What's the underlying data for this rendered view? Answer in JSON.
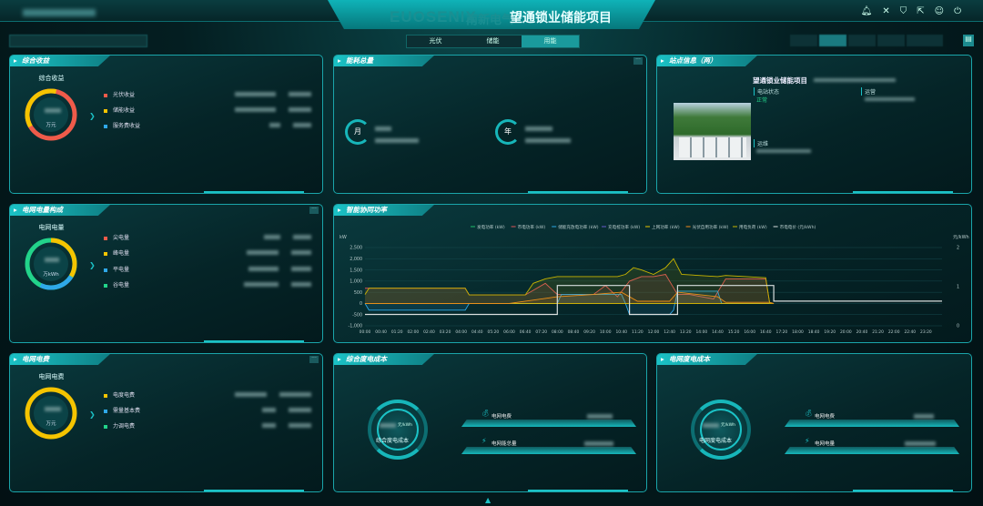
{
  "header": {
    "logo": "EUOSENIX",
    "logo_cn": "南新电气",
    "title": "望通锁业储能项目",
    "icons": [
      "bell-icon",
      "tools-icon",
      "shield-icon",
      "export-icon",
      "user-icon",
      "power-icon"
    ]
  },
  "tabs": [
    {
      "label": "光伏"
    },
    {
      "label": "储能"
    },
    {
      "label": "用能",
      "active": true
    }
  ],
  "panels": {
    "income": {
      "title": "综合收益",
      "center_label": "综合收益",
      "unit": "万元",
      "items": [
        {
          "label": "光伏收益",
          "color": "#ef5b4a"
        },
        {
          "label": "储能收益",
          "color": "#f5c400"
        },
        {
          "label": "服务费收益",
          "color": "#2fa8e8"
        }
      ]
    },
    "energy": {
      "title": "能耗总量",
      "month": "月",
      "year": "年"
    },
    "site": {
      "title": "站点信息（两）",
      "name": "望通锁业储能项目",
      "status_label": "电站状态",
      "status_value": "正常",
      "status_color": "#22d38a",
      "ops_label": "运营",
      "maint_label": "运维"
    },
    "grid_energy": {
      "title": "电网电量构成",
      "center_label": "电网电量",
      "unit": "万kWh",
      "items": [
        {
          "label": "尖电量",
          "color": "#ef5b4a"
        },
        {
          "label": "峰电量",
          "color": "#f5c400"
        },
        {
          "label": "平电量",
          "color": "#2fa8e8"
        },
        {
          "label": "谷电量",
          "color": "#22d38a"
        }
      ]
    },
    "grid_fee": {
      "title": "电网电费",
      "center_label": "电网电费",
      "unit": "万元",
      "items": [
        {
          "label": "电度电费",
          "color": "#f5c400"
        },
        {
          "label": "需量基本费",
          "color": "#2fa8e8"
        },
        {
          "label": "力调电费",
          "color": "#22d38a"
        }
      ]
    },
    "combined_cost": {
      "title": "综合度电成本",
      "gauge_unit": "元/kWh",
      "gauge_label": "综合度电成本",
      "rows": [
        {
          "label": "电网电费",
          "icon": "money-bag-icon"
        },
        {
          "label": "电网能总量",
          "icon": "lightning-icon"
        }
      ]
    },
    "grid_cost": {
      "title": "电网度电成本",
      "gauge_unit": "元/kWh",
      "gauge_label": "电网度电成本",
      "rows": [
        {
          "label": "电网电费",
          "icon": "money-bag-icon"
        },
        {
          "label": "电网电量",
          "icon": "lightning-icon"
        }
      ]
    },
    "power": {
      "title": "智能协同功率"
    }
  },
  "chart_data": {
    "type": "line",
    "ylabel_left": "kW",
    "ylabel_right": "元/kWh",
    "ylim_left": [
      -1000,
      2500
    ],
    "yticks_left": [
      "2,500",
      "2,000",
      "1,500",
      "1,000",
      "500",
      "0",
      "-500",
      "-1,000"
    ],
    "ylim_right": [
      0,
      2
    ],
    "yticks_right": [
      "2",
      "1",
      "0"
    ],
    "xticks": [
      "00:00",
      "00:40",
      "01:20",
      "02:00",
      "02:40",
      "03:20",
      "04:00",
      "04:40",
      "05:20",
      "06:00",
      "06:40",
      "07:20",
      "08:00",
      "08:40",
      "09:20",
      "10:00",
      "10:40",
      "11:20",
      "12:00",
      "12:40",
      "13:20",
      "14:00",
      "14:40",
      "15:20",
      "16:00",
      "16:40",
      "17:20",
      "18:00",
      "18:40",
      "19:20",
      "20:00",
      "20:40",
      "21:20",
      "22:00",
      "22:40",
      "23:20"
    ],
    "legend_position": "top",
    "grid": true,
    "series": [
      {
        "name": "发电功率 (kW)",
        "color": "#1fbf6a",
        "axis": "left",
        "points": []
      },
      {
        "name": "市电功率 (kW)",
        "color": "#e0555a",
        "axis": "left",
        "points": [
          [
            "00:00",
            680
          ],
          [
            "04:10",
            680
          ],
          [
            "04:20",
            380
          ],
          [
            "06:40",
            380
          ],
          [
            "07:30",
            900
          ],
          [
            "08:00",
            400
          ],
          [
            "09:30",
            400
          ],
          [
            "10:00",
            800
          ],
          [
            "10:30",
            300
          ],
          [
            "11:00",
            1000
          ],
          [
            "11:30",
            1200
          ],
          [
            "12:00",
            1200
          ],
          [
            "12:30",
            1300
          ],
          [
            "13:00",
            400
          ],
          [
            "13:30",
            400
          ],
          [
            "14:30",
            200
          ],
          [
            "15:00",
            1100
          ],
          [
            "16:40",
            1100
          ],
          [
            "16:50",
            0
          ]
        ]
      },
      {
        "name": "储能充放电功率 (kW)",
        "color": "#2fa8e8",
        "axis": "left",
        "points": [
          [
            "00:00",
            0
          ],
          [
            "00:10",
            -300
          ],
          [
            "04:10",
            -300
          ],
          [
            "04:20",
            0
          ],
          [
            "08:00",
            0
          ],
          [
            "08:10",
            400
          ],
          [
            "10:40",
            400
          ],
          [
            "10:50",
            0
          ],
          [
            "11:00",
            -500
          ],
          [
            "12:40",
            -500
          ],
          [
            "12:50",
            -300
          ],
          [
            "13:00",
            550
          ],
          [
            "14:40",
            550
          ],
          [
            "14:50",
            0
          ],
          [
            "16:50",
            0
          ]
        ]
      },
      {
        "name": "充电桩功率 (kW)",
        "color": "#6a5acd",
        "axis": "left",
        "points": []
      },
      {
        "name": "上网功率 (kW)",
        "color": "#e8c400",
        "axis": "left",
        "points": [
          [
            "00:00",
            0
          ],
          [
            "17:00",
            0
          ]
        ]
      },
      {
        "name": "光伏自用功率 (kW)",
        "color": "#f08a1c",
        "axis": "left",
        "points": [
          [
            "00:00",
            0
          ],
          [
            "06:00",
            0
          ],
          [
            "08:00",
            300
          ],
          [
            "09:30",
            400
          ],
          [
            "10:40",
            500
          ],
          [
            "11:20",
            100
          ],
          [
            "12:40",
            100
          ],
          [
            "13:00",
            500
          ],
          [
            "14:40",
            300
          ],
          [
            "15:00",
            50
          ],
          [
            "16:50",
            50
          ],
          [
            "17:00",
            0
          ]
        ]
      },
      {
        "name": "用电负荷 (kW)",
        "color": "#c8b400",
        "axis": "left",
        "points": [
          [
            "00:00",
            400
          ],
          [
            "00:10",
            680
          ],
          [
            "04:10",
            680
          ],
          [
            "04:20",
            380
          ],
          [
            "06:40",
            380
          ],
          [
            "07:00",
            900
          ],
          [
            "07:30",
            1100
          ],
          [
            "08:00",
            1200
          ],
          [
            "10:30",
            1200
          ],
          [
            "10:50",
            1300
          ],
          [
            "11:10",
            1600
          ],
          [
            "11:30",
            1500
          ],
          [
            "12:00",
            1300
          ],
          [
            "12:30",
            1600
          ],
          [
            "12:50",
            2000
          ],
          [
            "13:10",
            1300
          ],
          [
            "14:40",
            1200
          ],
          [
            "15:00",
            1250
          ],
          [
            "16:40",
            1150
          ],
          [
            "16:50",
            0
          ]
        ]
      },
      {
        "name": "市电电价 (元/kWh)",
        "color": "#d8dede",
        "axis": "right",
        "points": [
          [
            "00:00",
            0.29
          ],
          [
            "08:00",
            0.29
          ],
          [
            "08:00",
            1.03
          ],
          [
            "11:00",
            1.03
          ],
          [
            "11:00",
            0.29
          ],
          [
            "13:00",
            0.29
          ],
          [
            "13:00",
            1.03
          ],
          [
            "17:00",
            1.03
          ],
          [
            "17:00",
            0.63
          ],
          [
            "24:00",
            0.63
          ]
        ]
      }
    ]
  }
}
